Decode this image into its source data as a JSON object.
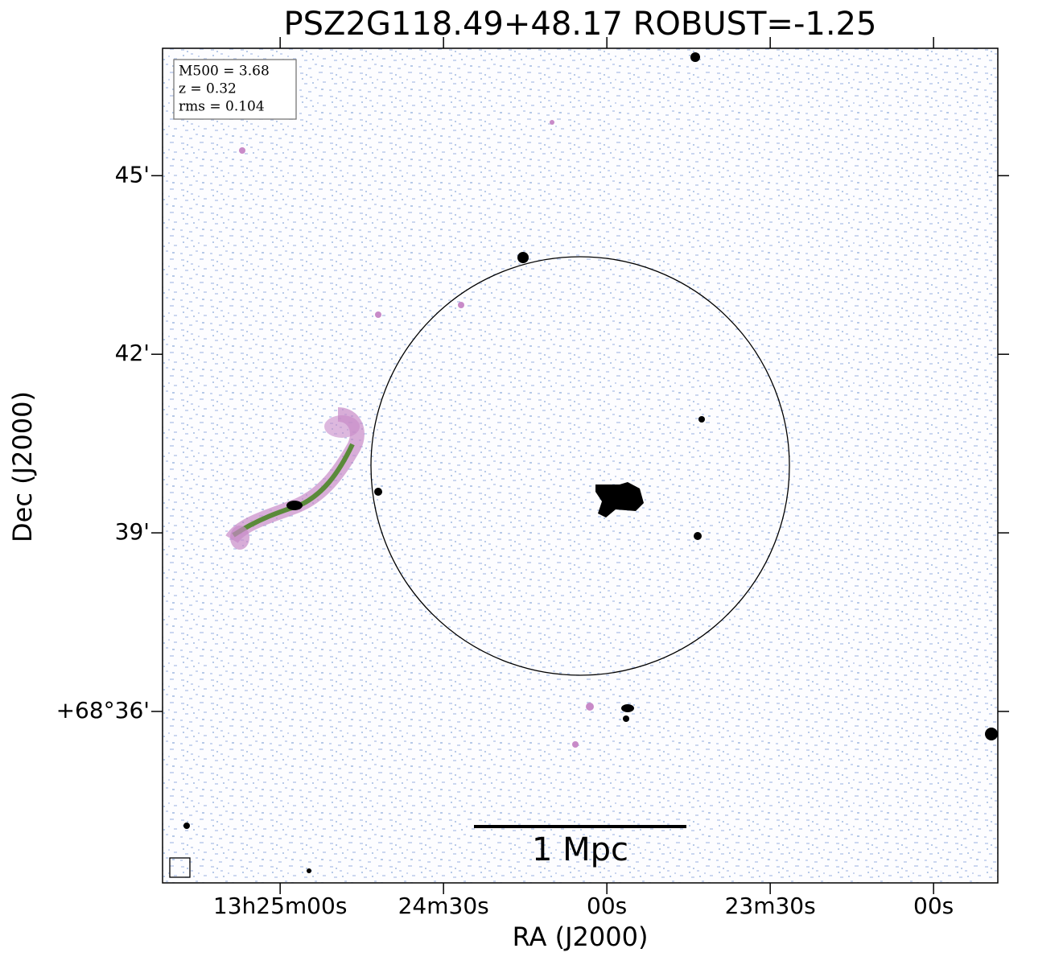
{
  "chart_data": {
    "type": "image",
    "title": "PSZ2G118.49+48.17 ROBUST=-1.25",
    "x_label": "RA (J2000)",
    "y_label": "Dec (J2000)",
    "xlim": [
      1521.6,
      1368.2
    ],
    "ylim": [
      33.12,
      47.14
    ],
    "xticks": [
      {
        "value": 1500,
        "label": "13h25m00s"
      },
      {
        "value": 1470,
        "label": "24m30s"
      },
      {
        "value": 1440,
        "label": "00s"
      },
      {
        "value": 1410,
        "label": "23m30s"
      },
      {
        "value": 1380,
        "label": "00s"
      }
    ],
    "yticks": [
      {
        "value": 45,
        "label": "45'"
      },
      {
        "value": 42,
        "label": "42'"
      },
      {
        "value": 39,
        "label": "39'"
      },
      {
        "value": 36,
        "label": "+68°36'"
      }
    ],
    "annotations": [
      "M500 = 3.68",
      "z = 0.32",
      "rms = 0.104"
    ],
    "scale_bar": "1 Mpc"
  }
}
